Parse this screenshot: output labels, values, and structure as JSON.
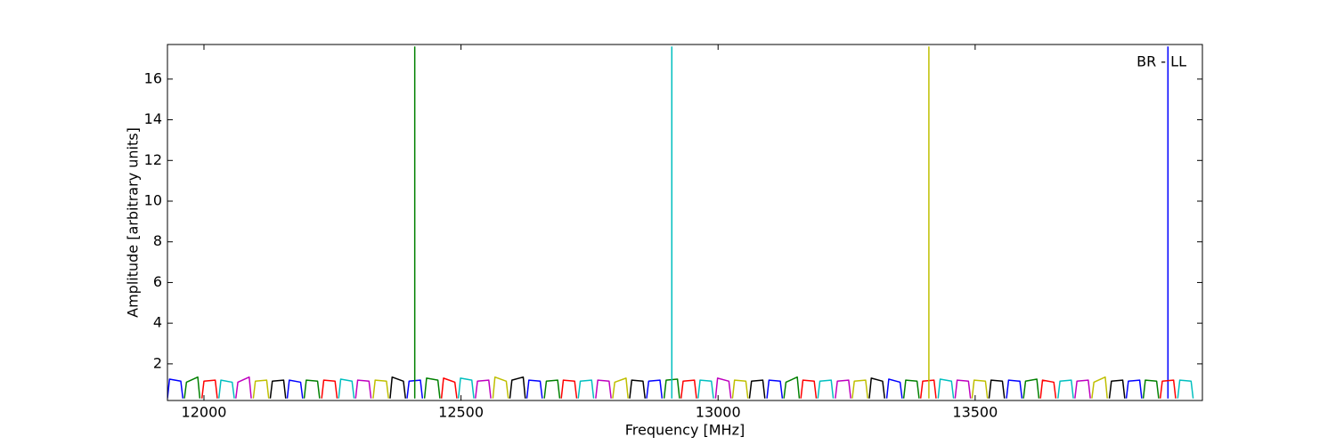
{
  "chart_data": {
    "type": "line",
    "xlabel": "Frequency [MHz]",
    "ylabel": "Amplitude [arbitrary units]",
    "annotation": "BR - LL",
    "xlim": [
      11929,
      13942
    ],
    "ylim": [
      0.2,
      17.7
    ],
    "xticks": [
      12000,
      12500,
      13000,
      13500
    ],
    "yticks": [
      2,
      4,
      6,
      8,
      10,
      12,
      14,
      16
    ],
    "series": [
      {
        "color": "#0000ff",
        "x": [
          11929,
          11933,
          11955,
          11959,
          null,
          12162,
          12166,
          12188,
          12192,
          null,
          12395,
          12399,
          12421,
          12425,
          null,
          12628,
          12632,
          12654,
          12658,
          null,
          12861,
          12865,
          12887,
          12891,
          null,
          13095,
          13099,
          13121,
          13125,
          null,
          13328,
          13332,
          13354,
          13358,
          null,
          13561,
          13565,
          13587,
          13591,
          null,
          13794,
          13798,
          13820,
          13824,
          null,
          13875,
          13875
        ],
        "values": [
          0.3,
          1.25,
          1.15,
          0.3,
          null,
          0.3,
          1.2,
          1.1,
          0.3,
          null,
          0.3,
          1.15,
          1.2,
          0.3,
          null,
          0.3,
          1.2,
          1.15,
          0.3,
          null,
          0.3,
          1.15,
          1.2,
          0.3,
          null,
          0.3,
          1.2,
          1.15,
          0.3,
          null,
          0.3,
          1.25,
          1.1,
          0.3,
          null,
          0.3,
          1.2,
          1.15,
          0.3,
          null,
          0.3,
          1.15,
          1.2,
          0.3,
          null,
          0.3,
          17.6
        ]
      },
      {
        "color": "#008000",
        "x": [
          11962,
          11966,
          11988,
          11992,
          null,
          12195,
          12199,
          12221,
          12225,
          null,
          12429,
          12433,
          12455,
          12459,
          null,
          12662,
          12666,
          12688,
          12692,
          null,
          12895,
          12899,
          12921,
          12925,
          null,
          13128,
          13132,
          13154,
          13158,
          null,
          13361,
          13365,
          13387,
          13391,
          null,
          13594,
          13598,
          13620,
          13624,
          null,
          13827,
          13831,
          13853,
          13857,
          null,
          12410,
          12410
        ],
        "values": [
          0.3,
          1.1,
          1.35,
          0.3,
          null,
          0.3,
          1.2,
          1.15,
          0.3,
          null,
          0.3,
          1.3,
          1.2,
          0.3,
          null,
          0.3,
          1.15,
          1.2,
          0.3,
          null,
          0.3,
          1.2,
          1.25,
          0.3,
          null,
          0.3,
          1.1,
          1.35,
          0.3,
          null,
          0.3,
          1.2,
          1.15,
          0.3,
          null,
          0.3,
          1.15,
          1.25,
          0.3,
          null,
          0.3,
          1.2,
          1.15,
          0.3,
          null,
          0.3,
          17.6
        ]
      },
      {
        "color": "#ff0000",
        "x": [
          11996,
          12000,
          12022,
          12026,
          null,
          12229,
          12233,
          12255,
          12259,
          null,
          12462,
          12466,
          12488,
          12492,
          null,
          12695,
          12699,
          12721,
          12725,
          null,
          12928,
          12932,
          12954,
          12958,
          null,
          13161,
          13165,
          13187,
          13191,
          null,
          13394,
          13398,
          13420,
          13424,
          null,
          13627,
          13631,
          13653,
          13657,
          null,
          13860,
          13864,
          13886,
          13890
        ],
        "values": [
          0.3,
          1.15,
          1.2,
          0.3,
          null,
          0.3,
          1.2,
          1.15,
          0.3,
          null,
          0.3,
          1.3,
          1.1,
          0.3,
          null,
          0.3,
          1.2,
          1.15,
          0.3,
          null,
          0.3,
          1.15,
          1.2,
          0.3,
          null,
          0.3,
          1.2,
          1.15,
          0.3,
          null,
          0.3,
          1.15,
          1.2,
          0.3,
          null,
          0.3,
          1.2,
          1.1,
          0.3,
          null,
          0.3,
          1.15,
          1.2,
          0.3
        ]
      },
      {
        "color": "#00bfbf",
        "x": [
          12029,
          12033,
          12055,
          12059,
          null,
          12262,
          12266,
          12288,
          12292,
          null,
          12495,
          12499,
          12521,
          12525,
          null,
          12728,
          12732,
          12754,
          12758,
          null,
          12961,
          12965,
          12987,
          12991,
          null,
          13194,
          13198,
          13220,
          13224,
          null,
          13428,
          13432,
          13454,
          13458,
          null,
          13661,
          13665,
          13687,
          13691,
          null,
          13894,
          13898,
          13920,
          13924,
          null,
          12910,
          12910
        ],
        "values": [
          0.3,
          1.2,
          1.1,
          0.3,
          null,
          0.3,
          1.25,
          1.15,
          0.3,
          null,
          0.3,
          1.3,
          1.2,
          0.3,
          null,
          0.3,
          1.15,
          1.2,
          0.3,
          null,
          0.3,
          1.2,
          1.15,
          0.3,
          null,
          0.3,
          1.15,
          1.2,
          0.3,
          null,
          0.3,
          1.25,
          1.15,
          0.3,
          null,
          0.3,
          1.15,
          1.2,
          0.3,
          null,
          0.3,
          1.2,
          1.15,
          0.3,
          null,
          0.3,
          17.6
        ]
      },
      {
        "color": "#bf00bf",
        "x": [
          12062,
          12066,
          12088,
          12092,
          null,
          12295,
          12299,
          12321,
          12325,
          null,
          12528,
          12532,
          12554,
          12558,
          null,
          12762,
          12766,
          12788,
          12792,
          null,
          12995,
          12999,
          13021,
          13025,
          null,
          13228,
          13232,
          13254,
          13258,
          null,
          13461,
          13465,
          13487,
          13491,
          null,
          13694,
          13698,
          13720,
          13724
        ],
        "values": [
          0.3,
          1.1,
          1.35,
          0.3,
          null,
          0.3,
          1.2,
          1.15,
          0.3,
          null,
          0.3,
          1.15,
          1.2,
          0.3,
          null,
          0.3,
          1.2,
          1.15,
          0.3,
          null,
          0.3,
          1.3,
          1.15,
          0.3,
          null,
          0.3,
          1.15,
          1.2,
          0.3,
          null,
          0.3,
          1.2,
          1.15,
          0.3,
          null,
          0.3,
          1.15,
          1.2,
          0.3
        ]
      },
      {
        "color": "#bfbf00",
        "x": [
          12096,
          12100,
          12122,
          12126,
          null,
          12329,
          12333,
          12355,
          12359,
          null,
          12562,
          12566,
          12588,
          12592,
          null,
          12795,
          12799,
          12821,
          12825,
          null,
          13028,
          13032,
          13054,
          13058,
          null,
          13261,
          13265,
          13287,
          13291,
          null,
          13494,
          13498,
          13520,
          13524,
          null,
          13727,
          13731,
          13753,
          13757,
          null,
          13410,
          13410
        ],
        "values": [
          0.3,
          1.15,
          1.2,
          0.3,
          null,
          0.3,
          1.2,
          1.15,
          0.3,
          null,
          0.3,
          1.35,
          1.15,
          0.3,
          null,
          0.3,
          1.1,
          1.3,
          0.3,
          null,
          0.3,
          1.2,
          1.15,
          0.3,
          null,
          0.3,
          1.15,
          1.2,
          0.3,
          null,
          0.3,
          1.2,
          1.15,
          0.3,
          null,
          0.3,
          1.1,
          1.35,
          0.3,
          null,
          0.3,
          17.6
        ]
      },
      {
        "color": "#000000",
        "x": [
          12129,
          12133,
          12155,
          12159,
          null,
          12362,
          12366,
          12388,
          12392,
          null,
          12595,
          12599,
          12621,
          12625,
          null,
          12828,
          12832,
          12854,
          12858,
          null,
          13061,
          13065,
          13087,
          13091,
          null,
          13294,
          13298,
          13320,
          13324,
          null,
          13527,
          13531,
          13553,
          13557,
          null,
          13761,
          13765,
          13787,
          13791
        ],
        "values": [
          0.3,
          1.15,
          1.2,
          0.3,
          null,
          0.3,
          1.35,
          1.15,
          0.3,
          null,
          0.3,
          1.2,
          1.35,
          0.3,
          null,
          0.3,
          1.2,
          1.15,
          0.3,
          null,
          0.3,
          1.15,
          1.2,
          0.3,
          null,
          0.3,
          1.3,
          1.15,
          0.3,
          null,
          0.3,
          1.2,
          1.15,
          0.3,
          null,
          0.3,
          1.15,
          1.2,
          0.3
        ]
      }
    ]
  }
}
